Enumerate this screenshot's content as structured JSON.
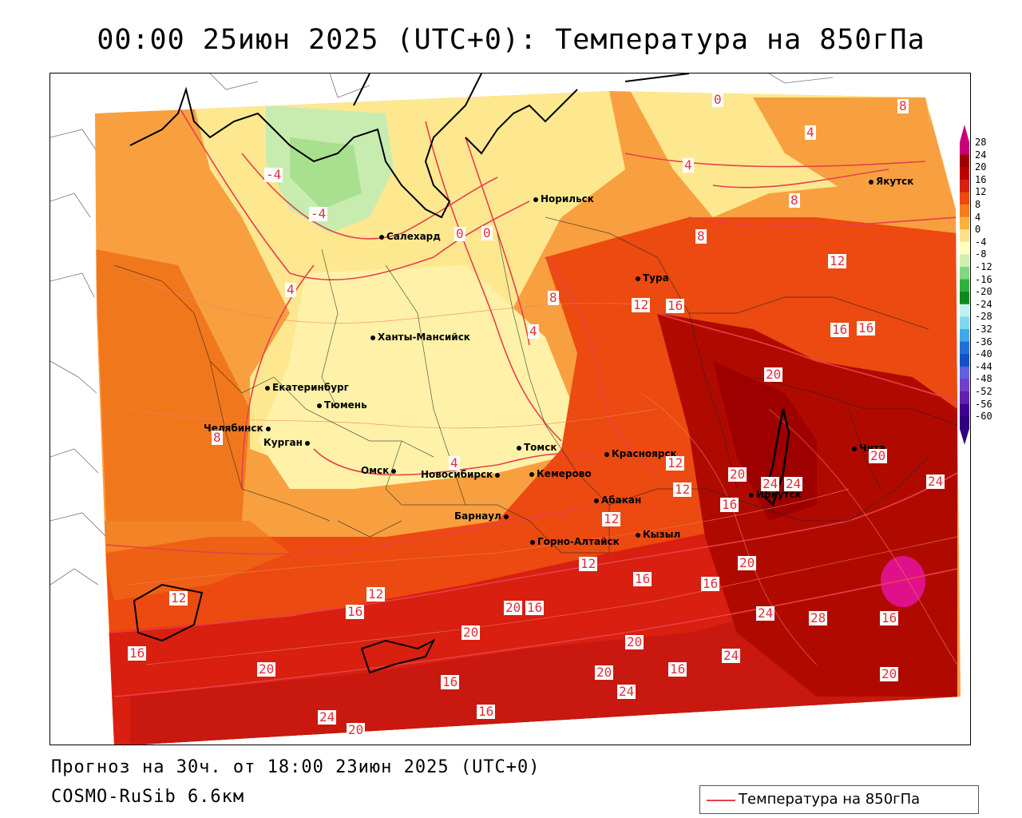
{
  "header": {
    "title": "00:00 25июн 2025 (UTC+0): Температура на 850гПа"
  },
  "footer": {
    "forecast": "Прогноз на 30ч. от 18:00 23июн 2025 (UTC+0)",
    "model": "COSMO-RuSib 6.6км"
  },
  "legend": {
    "series_label": "Температура на 850гПа",
    "line_color": "#e8404a"
  },
  "colorbar": {
    "labels": [
      "28",
      "24",
      "20",
      "16",
      "12",
      "8",
      "4",
      "0",
      "-4",
      "-8",
      "-12",
      "-16",
      "-20",
      "-24",
      "-28",
      "-32",
      "-36",
      "-40",
      "-44",
      "-48",
      "-52",
      "-56",
      "-60"
    ],
    "colors": [
      "#c8007a",
      "#9e0000",
      "#c00000",
      "#d81f10",
      "#ec4a10",
      "#f87c1a",
      "#fbb040",
      "#fde08a",
      "#ffffc0",
      "#d0f0b0",
      "#80d880",
      "#30b040",
      "#108820",
      "#c0f0f0",
      "#80d8f0",
      "#40a8e8",
      "#2070d8",
      "#1050c8",
      "#6060e0",
      "#7040c8",
      "#6020b0",
      "#400090",
      "#300080"
    ]
  },
  "cities": [
    {
      "name": "Норильск"
    },
    {
      "name": "Якутск"
    },
    {
      "name": "Салехард"
    },
    {
      "name": "Тура"
    },
    {
      "name": "Ханты-Мансийск"
    },
    {
      "name": "Екатеринбург"
    },
    {
      "name": "Тюмень"
    },
    {
      "name": "Челябинск"
    },
    {
      "name": "Курган"
    },
    {
      "name": "Омск"
    },
    {
      "name": "Томск"
    },
    {
      "name": "Красноярск"
    },
    {
      "name": "Новосибирск"
    },
    {
      "name": "Кемерово"
    },
    {
      "name": "Абакан"
    },
    {
      "name": "Барнаул"
    },
    {
      "name": "Горно-Алтайск"
    },
    {
      "name": "Кызыл"
    },
    {
      "name": "Иркутск"
    },
    {
      "name": "Чита"
    }
  ],
  "contour_labels": [
    "0",
    "8",
    "4",
    "-4",
    "4",
    "8",
    "-4",
    "0",
    "0",
    "8",
    "12",
    "4",
    "8",
    "12",
    "16",
    "4",
    "16",
    "16",
    "20",
    "8",
    "4",
    "20",
    "12",
    "12",
    "20",
    "24",
    "24",
    "24",
    "16",
    "12",
    "12",
    "20",
    "12",
    "16",
    "16",
    "12",
    "16",
    "20",
    "16",
    "24",
    "28",
    "16",
    "20",
    "20",
    "16",
    "24",
    "20",
    "16",
    "20",
    "20",
    "16",
    "24",
    "16",
    "20",
    "24"
  ]
}
